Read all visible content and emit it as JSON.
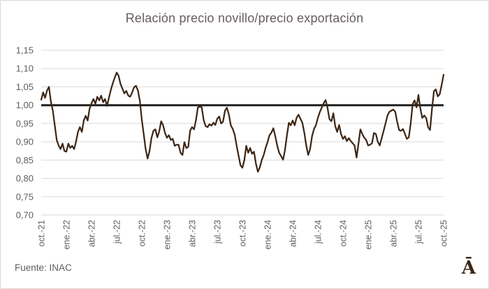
{
  "source": "Fuente: INAC",
  "logo": "Ā",
  "colors": {
    "line": "#3B2514",
    "reference_line": "#1F1F1F",
    "gridline": "#D9D9D9",
    "axis_text": "#635C5C",
    "title_text": "#665E5E",
    "border": "#D9D9D9",
    "background": "#FFFFFF"
  },
  "chart_data": {
    "type": "line",
    "title": "Relación precio novillo/precio exportación",
    "xlabel": "",
    "ylabel": "",
    "ylim": [
      0.7,
      1.15
    ],
    "grid": true,
    "legend": "none",
    "frequency": "weekly",
    "reference_line_y": 1.0,
    "y_ticks": [
      {
        "value": 1.15,
        "label": "1,15"
      },
      {
        "value": 1.1,
        "label": "1,10"
      },
      {
        "value": 1.05,
        "label": "1,05"
      },
      {
        "value": 1.0,
        "label": "1,00"
      },
      {
        "value": 0.95,
        "label": "0,95"
      },
      {
        "value": 0.9,
        "label": "0,90"
      },
      {
        "value": 0.85,
        "label": "0,85"
      },
      {
        "value": 0.8,
        "label": "0,80"
      },
      {
        "value": 0.75,
        "label": "0,75"
      },
      {
        "value": 0.7,
        "label": "0,70"
      }
    ],
    "x_tick_labels": [
      "oct.-21",
      "ene.-22",
      "abr.-22",
      "jul.-22",
      "oct.-22",
      "ene.-23",
      "abr.-23",
      "jul.-23",
      "oct.-23",
      "ene.-24",
      "abr.-24",
      "jul.-24",
      "oct.-24",
      "ene.-25",
      "abr.-25",
      "jul.-25",
      "oct.-25"
    ],
    "series": [
      {
        "name": "Relación precio novillo/precio exportación",
        "values": [
          1.015,
          1.035,
          1.02,
          1.04,
          1.05,
          1.01,
          0.985,
          0.945,
          0.905,
          0.89,
          0.88,
          0.895,
          0.875,
          0.873,
          0.895,
          0.883,
          0.889,
          0.88,
          0.9,
          0.927,
          0.94,
          0.927,
          0.958,
          0.971,
          0.958,
          0.99,
          1.005,
          1.017,
          1.004,
          1.023,
          1.013,
          1.026,
          1.008,
          1.017,
          0.998,
          1.02,
          1.042,
          1.06,
          1.075,
          1.089,
          1.08,
          1.058,
          1.045,
          1.032,
          1.039,
          1.026,
          1.023,
          1.035,
          1.049,
          1.053,
          1.04,
          1.012,
          0.96,
          0.92,
          0.88,
          0.854,
          0.875,
          0.91,
          0.93,
          0.934,
          0.912,
          0.928,
          0.956,
          0.945,
          0.924,
          0.911,
          0.918,
          0.905,
          0.908,
          0.889,
          0.892,
          0.892,
          0.87,
          0.864,
          0.899,
          0.883,
          0.886,
          0.931,
          0.94,
          0.934,
          0.959,
          0.994,
          0.996,
          0.994,
          0.959,
          0.943,
          0.94,
          0.948,
          0.944,
          0.952,
          0.946,
          0.963,
          0.969,
          0.95,
          0.955,
          0.985,
          0.993,
          0.975,
          0.945,
          0.935,
          0.92,
          0.89,
          0.862,
          0.836,
          0.829,
          0.85,
          0.889,
          0.87,
          0.883,
          0.867,
          0.873,
          0.84,
          0.818,
          0.83,
          0.85,
          0.864,
          0.883,
          0.899,
          0.918,
          0.925,
          0.937,
          0.915,
          0.89,
          0.87,
          0.861,
          0.851,
          0.877,
          0.917,
          0.952,
          0.945,
          0.958,
          0.945,
          0.965,
          0.974,
          0.963,
          0.952,
          0.925,
          0.89,
          0.864,
          0.88,
          0.915,
          0.935,
          0.945,
          0.965,
          0.981,
          0.993,
          1.005,
          1.014,
          0.993,
          0.962,
          0.956,
          0.978,
          0.943,
          0.927,
          0.946,
          0.921,
          0.908,
          0.915,
          0.902,
          0.91,
          0.902,
          0.896,
          0.89,
          0.857,
          0.895,
          0.934,
          0.921,
          0.911,
          0.905,
          0.89,
          0.892,
          0.896,
          0.924,
          0.921,
          0.9,
          0.89,
          0.91,
          0.93,
          0.95,
          0.972,
          0.982,
          0.985,
          0.988,
          0.982,
          0.955,
          0.932,
          0.93,
          0.935,
          0.922,
          0.908,
          0.912,
          0.95,
          1.003,
          1.013,
          0.994,
          1.028,
          0.99,
          0.965,
          0.972,
          0.965,
          0.94,
          0.932,
          0.99,
          1.038,
          1.043,
          1.024,
          1.03,
          1.055,
          1.083
        ]
      }
    ]
  }
}
